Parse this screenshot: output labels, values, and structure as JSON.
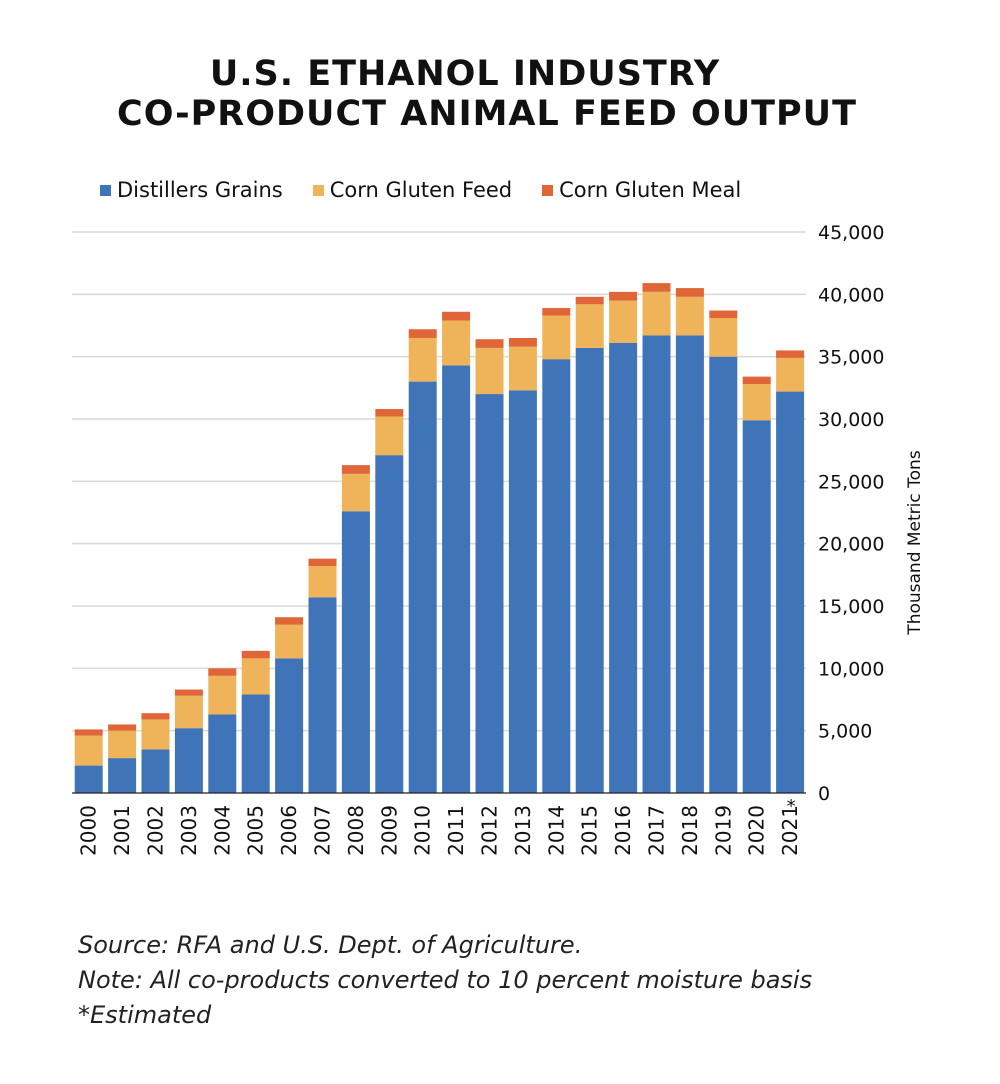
{
  "header": {
    "title_line1": "U.S. ETHANOL INDUSTRY",
    "title_line2": "CO-PRODUCT  ANIMAL FEED OUTPUT"
  },
  "colors": {
    "distillers": "#3f75b8",
    "gluten_feed": "#efb35a",
    "gluten_meal": "#e0663a",
    "gridline": "#d9d9d9",
    "axis": "#222222"
  },
  "chart_data": {
    "type": "bar",
    "stacked": true,
    "categories": [
      "2000",
      "2001",
      "2002",
      "2003",
      "2004",
      "2005",
      "2006",
      "2007",
      "2008",
      "2009",
      "2010",
      "2011",
      "2012",
      "2013",
      "2014",
      "2015",
      "2016",
      "2017",
      "2018",
      "2019",
      "2020",
      "2021"
    ],
    "category_marks": [
      "",
      "",
      "",
      "",
      "",
      "",
      "",
      "",
      "",
      "",
      "",
      "",
      "",
      "",
      "",
      "",
      "",
      "",
      "",
      "",
      "",
      "*"
    ],
    "series": [
      {
        "name": "Distillers Grains",
        "color": "#3f75b8",
        "values": [
          2200,
          2800,
          3500,
          5200,
          6300,
          7900,
          10800,
          15700,
          22600,
          27100,
          33000,
          34300,
          32000,
          32300,
          34800,
          35700,
          36100,
          36700,
          36700,
          35000,
          29900,
          32200
        ]
      },
      {
        "name": "Corn Gluten Feed",
        "color": "#efb35a",
        "values": [
          2400,
          2200,
          2400,
          2600,
          3100,
          2900,
          2700,
          2500,
          3000,
          3100,
          3500,
          3600,
          3700,
          3500,
          3500,
          3500,
          3400,
          3500,
          3100,
          3100,
          2900,
          2700
        ]
      },
      {
        "name": "Corn Gluten Meal",
        "color": "#e0663a",
        "values": [
          500,
          500,
          500,
          500,
          600,
          600,
          600,
          600,
          700,
          600,
          700,
          700,
          700,
          700,
          600,
          600,
          700,
          700,
          700,
          600,
          600,
          600
        ]
      }
    ],
    "ylabel": "Thousand Metric Tons",
    "ylim": [
      0,
      45000
    ],
    "yticks": [
      0,
      5000,
      10000,
      15000,
      20000,
      25000,
      30000,
      35000,
      40000,
      45000
    ],
    "ytick_labels": [
      "0",
      "5,000",
      "10,000",
      "15,000",
      "20,000",
      "25,000",
      "30,000",
      "35,000",
      "40,000",
      "45,000"
    ],
    "y_axis_side": "right",
    "grid": true,
    "legend_position": "top"
  },
  "notes": {
    "source": "Source: RFA and U.S. Dept. of Agriculture.",
    "note": "Note: All co-products converted to 10 percent moisture basis",
    "estimated": "*Estimated"
  }
}
